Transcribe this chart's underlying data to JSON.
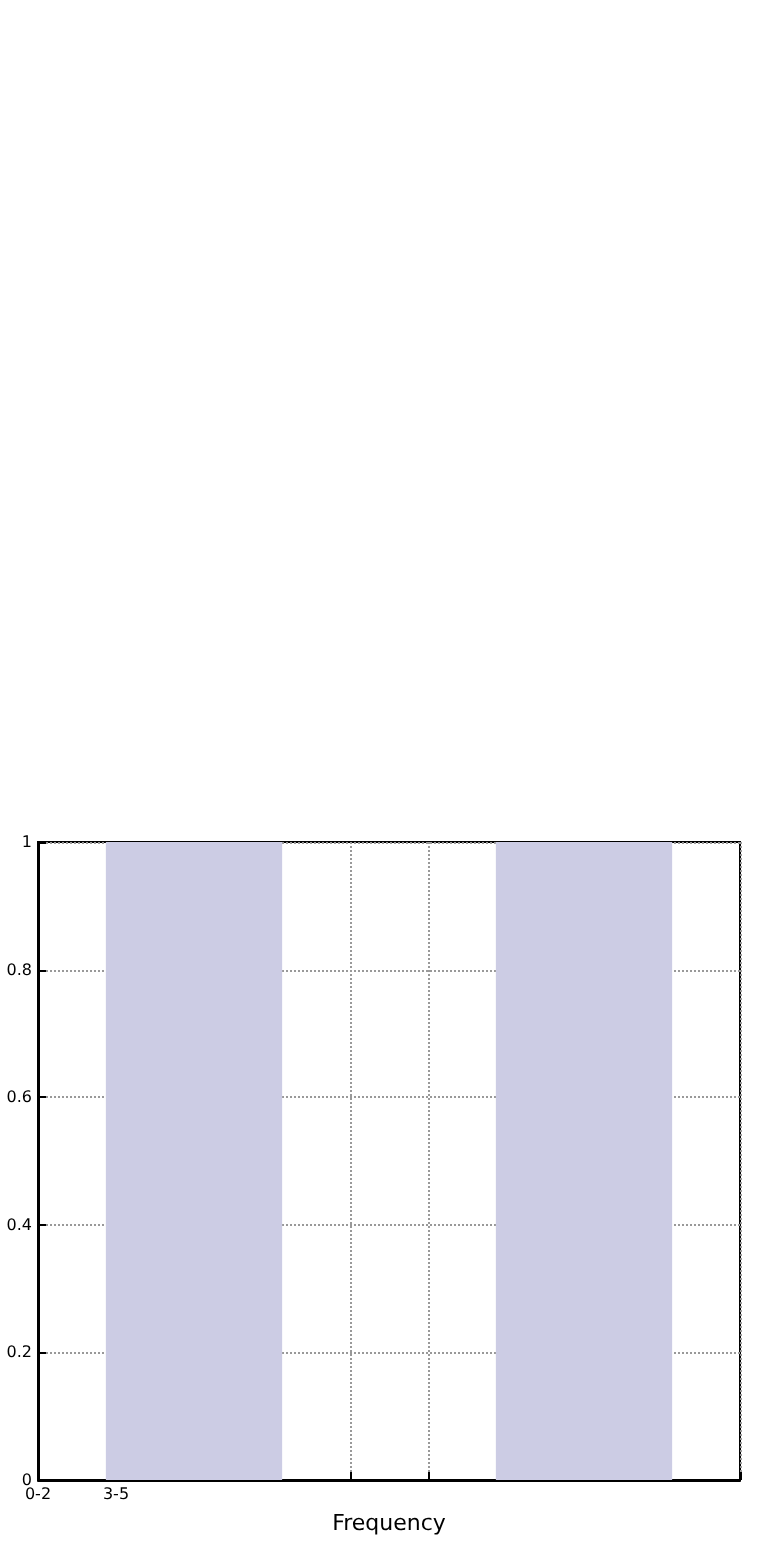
{
  "chart_data": {
    "type": "line",
    "xlabel": "Frequency",
    "categories": [
      "0-2",
      "3-5",
      null,
      null,
      null,
      null,
      null,
      null,
      null,
      null
    ],
    "ylim": [
      0,
      1
    ],
    "yticks": [
      0,
      0.2,
      0.4,
      0.6,
      0.8,
      1
    ],
    "grid": true
  }
}
